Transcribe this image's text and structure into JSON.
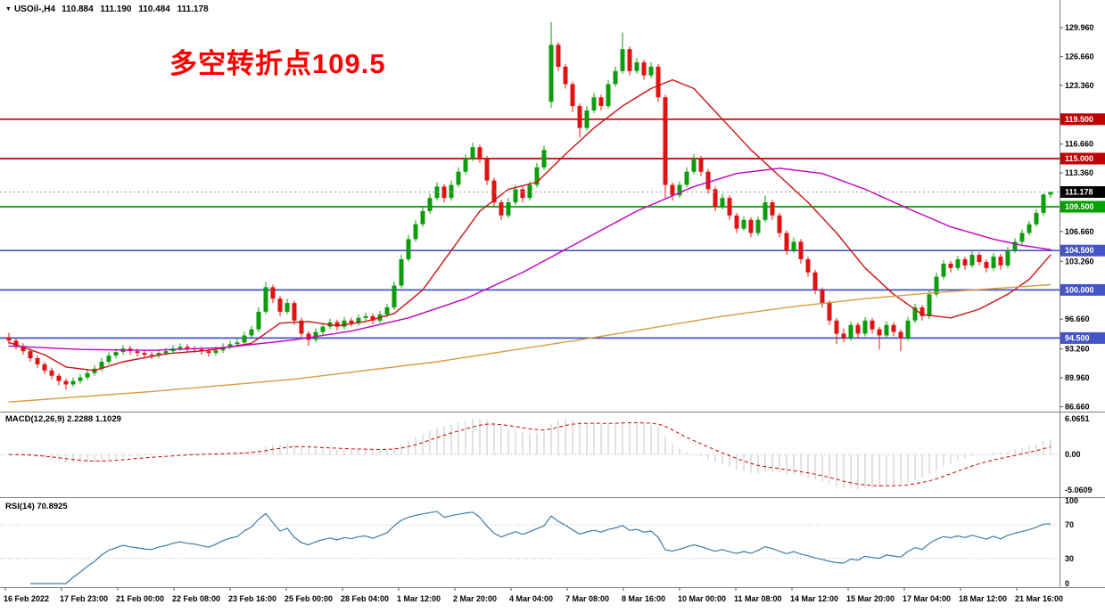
{
  "header": {
    "collapse_icon": "▼",
    "symbol_period": "USOil-,H4",
    "ohlc": "110.884 111.190 110.484 111.178"
  },
  "annotation": {
    "text": "多空转折点109.5",
    "color": "#ff0000"
  },
  "macd_panel": {
    "label": "MACD(12,26,9) 2.2288 1.1029",
    "scale_max": "6.0651",
    "scale_zero": "0.00",
    "scale_min": "-5.0609"
  },
  "rsi_panel": {
    "label": "RSI(14) 70.8925",
    "scale": [
      "100",
      "70",
      "30",
      "0"
    ],
    "levels": [
      70,
      30
    ]
  },
  "chart_data": {
    "type": "candlestick",
    "symbol": "USOil-",
    "timeframe": "H4",
    "title": "USOil-,H4 110.884 111.190 110.484 111.178",
    "ylim": [
      86.3,
      132.3
    ],
    "y_ticks": [
      "129.960",
      "126.660",
      "123.360",
      "116.660",
      "113.360",
      "106.660",
      "103.260",
      "96.660",
      "93.260",
      "89.960",
      "86.660"
    ],
    "x_labels": [
      "16 Feb 2022",
      "17 Feb 23:00",
      "21 Feb 00:00",
      "22 Feb 08:00",
      "23 Feb 16:00",
      "25 Feb 00:00",
      "28 Feb 04:00",
      "1 Mar 12:00",
      "2 Mar 20:00",
      "4 Mar 04:00",
      "7 Mar 08:00",
      "8 Mar 16:00",
      "10 Mar 00:00",
      "11 Mar 08:00",
      "14 Mar 12:00",
      "15 Mar 20:00",
      "17 Mar 04:00",
      "18 Mar 12:00",
      "21 Mar 16:00"
    ],
    "colors": {
      "bull": "#0c9c0c",
      "bear": "#e01212",
      "background": "#ffffff",
      "scale_text": "#000000"
    },
    "current_price": {
      "value": 111.178,
      "label": "111.178",
      "badge_color": "#000000"
    },
    "levels": [
      {
        "price": 119.5,
        "label": "119.500",
        "color": "#c00000"
      },
      {
        "price": 115.0,
        "label": "115.000",
        "color": "#c00000"
      },
      {
        "price": 109.5,
        "label": "109.500",
        "color": "#00a000"
      },
      {
        "price": 104.5,
        "label": "104.500",
        "color": "#4455c8"
      },
      {
        "price": 100.0,
        "label": "100.000",
        "color": "#4455c8"
      },
      {
        "price": 94.5,
        "label": "94.500",
        "color": "#4455c8"
      }
    ],
    "moving_averages": [
      {
        "name": "fast",
        "color": "#cc1111",
        "points": [
          [
            0,
            94.0
          ],
          [
            5,
            92.6
          ],
          [
            8,
            91.2
          ],
          [
            12,
            90.8
          ],
          [
            16,
            91.8
          ],
          [
            22,
            92.7
          ],
          [
            28,
            93.1
          ],
          [
            34,
            93.9
          ],
          [
            38,
            96.2
          ],
          [
            42,
            96.4
          ],
          [
            46,
            95.9
          ],
          [
            50,
            96.4
          ],
          [
            54,
            97.3
          ],
          [
            58,
            100.0
          ],
          [
            62,
            104.5
          ],
          [
            66,
            109.0
          ],
          [
            70,
            111.5
          ],
          [
            74,
            112.3
          ],
          [
            78,
            115.5
          ],
          [
            82,
            118.5
          ],
          [
            86,
            121.0
          ],
          [
            90,
            123.0
          ],
          [
            93,
            124.0
          ],
          [
            96,
            123.0
          ],
          [
            100,
            119.5
          ],
          [
            104,
            116.0
          ],
          [
            108,
            113.0
          ],
          [
            112,
            110.0
          ],
          [
            116,
            106.5
          ],
          [
            120,
            102.5
          ],
          [
            124,
            99.5
          ],
          [
            128,
            97.2
          ],
          [
            132,
            96.8
          ],
          [
            136,
            97.8
          ],
          [
            140,
            99.5
          ],
          [
            143,
            101.2
          ],
          [
            146,
            104.0
          ]
        ]
      },
      {
        "name": "medium",
        "color": "#c000c0",
        "points": [
          [
            0,
            93.6
          ],
          [
            10,
            93.2
          ],
          [
            20,
            93.1
          ],
          [
            30,
            93.4
          ],
          [
            40,
            94.3
          ],
          [
            48,
            95.3
          ],
          [
            56,
            96.8
          ],
          [
            64,
            99.0
          ],
          [
            72,
            102.0
          ],
          [
            80,
            105.5
          ],
          [
            88,
            109.0
          ],
          [
            96,
            111.8
          ],
          [
            102,
            113.3
          ],
          [
            108,
            113.9
          ],
          [
            114,
            113.3
          ],
          [
            120,
            111.5
          ],
          [
            126,
            109.3
          ],
          [
            132,
            107.2
          ],
          [
            138,
            105.8
          ],
          [
            142,
            105.1
          ],
          [
            146,
            104.6
          ]
        ]
      },
      {
        "name": "slow",
        "color": "#da9b3c",
        "points": [
          [
            0,
            87.2
          ],
          [
            20,
            88.4
          ],
          [
            40,
            89.8
          ],
          [
            60,
            91.8
          ],
          [
            80,
            94.3
          ],
          [
            100,
            97.0
          ],
          [
            110,
            98.1
          ],
          [
            120,
            99.0
          ],
          [
            130,
            99.7
          ],
          [
            146,
            100.6
          ]
        ]
      }
    ],
    "indicators": [
      {
        "name": "MACD",
        "params": [
          12,
          26,
          9
        ],
        "values": [
          2.2288,
          1.1029
        ],
        "histogram_color": "#c4c4c4",
        "signal_color": "#cc0000"
      },
      {
        "name": "RSI",
        "params": [
          14
        ],
        "value": 70.8925,
        "color": "#3e7ca8"
      }
    ],
    "candles": [
      [
        94.6,
        95.1,
        93.8,
        94.2
      ],
      [
        94.2,
        94.5,
        93.2,
        93.6
      ],
      [
        93.6,
        93.9,
        92.6,
        93.0
      ],
      [
        93.0,
        93.3,
        91.8,
        92.2
      ],
      [
        92.2,
        92.5,
        91.1,
        91.5
      ],
      [
        91.5,
        91.8,
        90.4,
        90.8
      ],
      [
        90.8,
        91.1,
        89.8,
        90.2
      ],
      [
        90.2,
        90.5,
        89.1,
        89.6
      ],
      [
        89.6,
        89.9,
        88.6,
        89.2
      ],
      [
        89.2,
        90.0,
        88.9,
        89.6
      ],
      [
        89.6,
        90.4,
        89.3,
        90.0
      ],
      [
        90.0,
        90.9,
        89.7,
        90.5
      ],
      [
        90.5,
        91.4,
        90.2,
        91.0
      ],
      [
        91.0,
        92.2,
        90.7,
        91.8
      ],
      [
        91.8,
        92.9,
        91.5,
        92.5
      ],
      [
        92.5,
        93.3,
        92.2,
        92.9
      ],
      [
        92.9,
        93.7,
        92.6,
        93.3
      ],
      [
        93.3,
        93.6,
        92.6,
        93.0
      ],
      [
        93.0,
        93.3,
        92.4,
        92.8
      ],
      [
        92.8,
        93.1,
        92.2,
        92.6
      ],
      [
        92.6,
        92.9,
        92.1,
        92.5
      ],
      [
        92.5,
        93.2,
        92.2,
        92.8
      ],
      [
        92.8,
        93.4,
        92.5,
        93.0
      ],
      [
        93.0,
        93.7,
        92.7,
        93.3
      ],
      [
        93.3,
        93.9,
        93.0,
        93.5
      ],
      [
        93.5,
        93.8,
        92.9,
        93.3
      ],
      [
        93.3,
        93.6,
        92.8,
        93.2
      ],
      [
        93.2,
        93.5,
        92.6,
        93.0
      ],
      [
        93.0,
        93.3,
        92.4,
        92.8
      ],
      [
        92.8,
        93.5,
        92.5,
        93.1
      ],
      [
        93.1,
        93.9,
        92.8,
        93.5
      ],
      [
        93.5,
        94.2,
        93.2,
        93.8
      ],
      [
        93.8,
        94.4,
        93.5,
        94.0
      ],
      [
        94.0,
        95.2,
        93.7,
        94.8
      ],
      [
        94.8,
        95.9,
        94.5,
        95.5
      ],
      [
        95.5,
        98.0,
        95.2,
        97.5
      ],
      [
        97.5,
        100.9,
        97.2,
        100.3
      ],
      [
        100.3,
        100.6,
        98.5,
        99.0
      ],
      [
        99.0,
        99.3,
        97.0,
        97.5
      ],
      [
        97.5,
        99.0,
        97.2,
        98.5
      ],
      [
        98.5,
        98.8,
        96.0,
        96.5
      ],
      [
        96.5,
        96.8,
        94.6,
        95.0
      ],
      [
        95.0,
        95.3,
        93.6,
        94.3
      ],
      [
        94.3,
        95.6,
        94.0,
        95.2
      ],
      [
        95.2,
        96.2,
        94.9,
        95.8
      ],
      [
        95.8,
        96.7,
        95.5,
        96.3
      ],
      [
        96.3,
        96.6,
        95.4,
        95.8
      ],
      [
        95.8,
        96.9,
        95.5,
        96.5
      ],
      [
        96.5,
        96.8,
        95.8,
        96.2
      ],
      [
        96.2,
        97.2,
        95.9,
        96.8
      ],
      [
        96.8,
        97.4,
        96.5,
        97.0
      ],
      [
        97.0,
        97.3,
        96.1,
        96.5
      ],
      [
        96.5,
        97.6,
        96.2,
        97.2
      ],
      [
        97.2,
        98.4,
        96.9,
        98.0
      ],
      [
        98.0,
        101.0,
        97.7,
        100.5
      ],
      [
        100.5,
        104.0,
        100.2,
        103.5
      ],
      [
        103.5,
        106.3,
        103.2,
        105.8
      ],
      [
        105.8,
        108.0,
        105.5,
        107.5
      ],
      [
        107.5,
        109.5,
        107.2,
        109.0
      ],
      [
        109.0,
        111.0,
        108.7,
        110.5
      ],
      [
        110.5,
        112.3,
        110.2,
        111.8
      ],
      [
        111.8,
        112.1,
        110.0,
        110.5
      ],
      [
        110.5,
        112.5,
        110.2,
        112.0
      ],
      [
        112.0,
        114.0,
        111.7,
        113.5
      ],
      [
        113.5,
        115.5,
        113.2,
        115.0
      ],
      [
        115.0,
        116.8,
        114.7,
        116.3
      ],
      [
        116.3,
        116.6,
        114.5,
        115.0
      ],
      [
        115.0,
        115.3,
        112.0,
        112.5
      ],
      [
        112.5,
        112.8,
        109.5,
        110.0
      ],
      [
        110.0,
        110.3,
        108.0,
        108.5
      ],
      [
        108.5,
        110.5,
        108.2,
        110.0
      ],
      [
        110.0,
        112.0,
        109.7,
        111.5
      ],
      [
        111.5,
        111.8,
        110.0,
        110.5
      ],
      [
        110.5,
        112.4,
        110.2,
        112.0
      ],
      [
        112.0,
        114.5,
        111.7,
        114.0
      ],
      [
        114.0,
        116.5,
        113.7,
        116.0
      ],
      [
        121.5,
        130.6,
        120.8,
        128.0
      ],
      [
        128.0,
        128.3,
        125.0,
        125.5
      ],
      [
        125.5,
        125.8,
        123.0,
        123.5
      ],
      [
        123.5,
        123.8,
        120.3,
        121.0
      ],
      [
        121.0,
        121.3,
        117.4,
        118.5
      ],
      [
        118.5,
        121.0,
        118.2,
        120.5
      ],
      [
        120.5,
        122.5,
        120.2,
        122.0
      ],
      [
        122.0,
        122.3,
        120.5,
        121.0
      ],
      [
        121.0,
        124.0,
        120.7,
        123.5
      ],
      [
        123.5,
        125.5,
        123.2,
        125.0
      ],
      [
        125.0,
        129.4,
        124.7,
        127.5
      ],
      [
        127.5,
        127.8,
        124.5,
        125.0
      ],
      [
        125.0,
        126.5,
        124.7,
        126.0
      ],
      [
        126.0,
        126.3,
        124.0,
        124.5
      ],
      [
        124.5,
        126.0,
        124.2,
        125.5
      ],
      [
        125.5,
        125.8,
        121.5,
        122.0
      ],
      [
        122.0,
        122.3,
        110.5,
        112.0
      ],
      [
        112.0,
        112.3,
        110.2,
        110.8
      ],
      [
        110.8,
        112.4,
        110.5,
        112.0
      ],
      [
        112.0,
        114.0,
        111.7,
        113.5
      ],
      [
        113.5,
        115.5,
        113.2,
        115.0
      ],
      [
        115.0,
        115.3,
        113.0,
        113.5
      ],
      [
        113.5,
        113.8,
        111.0,
        111.5
      ],
      [
        111.5,
        111.8,
        109.0,
        109.5
      ],
      [
        109.5,
        111.0,
        109.2,
        110.5
      ],
      [
        110.5,
        110.8,
        108.0,
        108.5
      ],
      [
        108.5,
        108.8,
        106.5,
        107.0
      ],
      [
        107.0,
        108.4,
        106.7,
        108.0
      ],
      [
        108.0,
        108.3,
        106.0,
        106.5
      ],
      [
        106.5,
        108.4,
        106.2,
        108.0
      ],
      [
        108.0,
        110.8,
        107.7,
        110.0
      ],
      [
        110.0,
        110.3,
        108.0,
        108.5
      ],
      [
        108.5,
        108.8,
        106.0,
        106.5
      ],
      [
        106.5,
        106.8,
        104.0,
        104.5
      ],
      [
        104.5,
        106.0,
        104.2,
        105.5
      ],
      [
        105.5,
        105.8,
        103.0,
        103.5
      ],
      [
        103.5,
        103.8,
        101.5,
        102.0
      ],
      [
        102.0,
        102.3,
        99.5,
        100.0
      ],
      [
        100.0,
        100.3,
        98.0,
        98.5
      ],
      [
        98.5,
        98.8,
        96.0,
        96.5
      ],
      [
        96.5,
        96.8,
        93.8,
        95.0
      ],
      [
        95.0,
        95.6,
        94.0,
        94.5
      ],
      [
        94.5,
        96.4,
        94.2,
        96.0
      ],
      [
        96.0,
        96.3,
        94.5,
        95.0
      ],
      [
        95.0,
        96.9,
        94.7,
        96.5
      ],
      [
        96.5,
        96.8,
        95.0,
        95.5
      ],
      [
        95.5,
        95.8,
        93.2,
        94.8
      ],
      [
        94.8,
        96.4,
        94.5,
        96.0
      ],
      [
        96.0,
        96.3,
        94.7,
        95.2
      ],
      [
        95.2,
        95.5,
        93.0,
        94.5
      ],
      [
        94.5,
        96.9,
        94.2,
        96.5
      ],
      [
        96.5,
        98.4,
        96.2,
        98.0
      ],
      [
        98.0,
        98.3,
        96.5,
        97.0
      ],
      [
        97.0,
        100.0,
        96.7,
        99.5
      ],
      [
        99.5,
        102.0,
        99.2,
        101.5
      ],
      [
        101.5,
        103.4,
        101.2,
        103.0
      ],
      [
        103.0,
        103.3,
        102.0,
        102.5
      ],
      [
        102.5,
        103.9,
        102.2,
        103.5
      ],
      [
        103.5,
        103.8,
        102.3,
        102.8
      ],
      [
        102.8,
        104.4,
        102.5,
        104.0
      ],
      [
        104.0,
        104.3,
        102.8,
        103.2
      ],
      [
        103.2,
        103.5,
        102.0,
        102.5
      ],
      [
        102.5,
        104.2,
        102.2,
        103.8
      ],
      [
        103.8,
        104.1,
        102.3,
        102.8
      ],
      [
        102.8,
        104.9,
        102.5,
        104.5
      ],
      [
        104.5,
        105.9,
        104.2,
        105.5
      ],
      [
        105.5,
        106.9,
        105.2,
        106.5
      ],
      [
        106.5,
        107.9,
        106.2,
        107.5
      ],
      [
        107.5,
        109.2,
        107.2,
        108.8
      ],
      [
        108.8,
        111.0,
        108.5,
        110.9
      ],
      [
        110.884,
        111.19,
        110.484,
        111.178
      ]
    ]
  }
}
